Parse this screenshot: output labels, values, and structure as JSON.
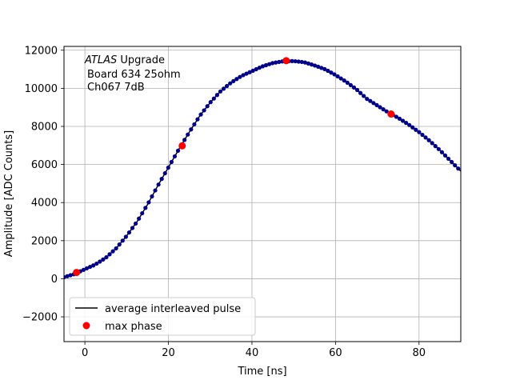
{
  "chart_data": {
    "type": "scatter",
    "title": "",
    "annotation": {
      "line1_italic": "ATLAS",
      "line1_rest": " Upgrade",
      "line2": "Board 634 25ohm",
      "line3": "Ch067 7dB"
    },
    "xlabel": "Time [ns]",
    "ylabel": "Amplitude [ADC Counts]",
    "xlim": [
      -5,
      90
    ],
    "ylim": [
      -3300,
      12200
    ],
    "xticks": [
      0,
      20,
      40,
      60,
      80
    ],
    "yticks": [
      -2000,
      0,
      2000,
      4000,
      6000,
      8000,
      10000,
      12000
    ],
    "grid": true,
    "legend": {
      "placement": "lower-left",
      "entries": [
        {
          "label": "average interleaved pulse",
          "marker": "line",
          "color": "#000000"
        },
        {
          "label": "max phase",
          "marker": "dot",
          "color": "#ff0000"
        }
      ]
    },
    "curve_color": "#000000",
    "point_color": "#00008b",
    "curve_points": [
      [
        -5,
        80
      ],
      [
        -2.5,
        250
      ],
      [
        0,
        500
      ],
      [
        2.5,
        750
      ],
      [
        5,
        1100
      ],
      [
        7.5,
        1600
      ],
      [
        10,
        2250
      ],
      [
        12.5,
        3000
      ],
      [
        15,
        3900
      ],
      [
        17.5,
        4900
      ],
      [
        20,
        5850
      ],
      [
        22.5,
        6800
      ],
      [
        25,
        7700
      ],
      [
        27.5,
        8550
      ],
      [
        30,
        9250
      ],
      [
        32.5,
        9850
      ],
      [
        35,
        10300
      ],
      [
        37.5,
        10650
      ],
      [
        40,
        10900
      ],
      [
        42.5,
        11150
      ],
      [
        45,
        11330
      ],
      [
        47.5,
        11420
      ],
      [
        50,
        11430
      ],
      [
        52.5,
        11370
      ],
      [
        55,
        11200
      ],
      [
        57.5,
        11000
      ],
      [
        60,
        10700
      ],
      [
        62.5,
        10350
      ],
      [
        65,
        9950
      ],
      [
        67.5,
        9450
      ],
      [
        70,
        9100
      ],
      [
        72.5,
        8750
      ],
      [
        75,
        8450
      ],
      [
        77.5,
        8100
      ],
      [
        80,
        7700
      ],
      [
        82.5,
        7250
      ],
      [
        85,
        6750
      ],
      [
        87.5,
        6200
      ],
      [
        90,
        5650
      ]
    ],
    "sample_spacing_ns": 0.78,
    "max_phase_points": [
      {
        "x": -2,
        "y": 330
      },
      {
        "x": 23.3,
        "y": 6980
      },
      {
        "x": 48.2,
        "y": 11450
      },
      {
        "x": 73.3,
        "y": 8650
      }
    ]
  }
}
